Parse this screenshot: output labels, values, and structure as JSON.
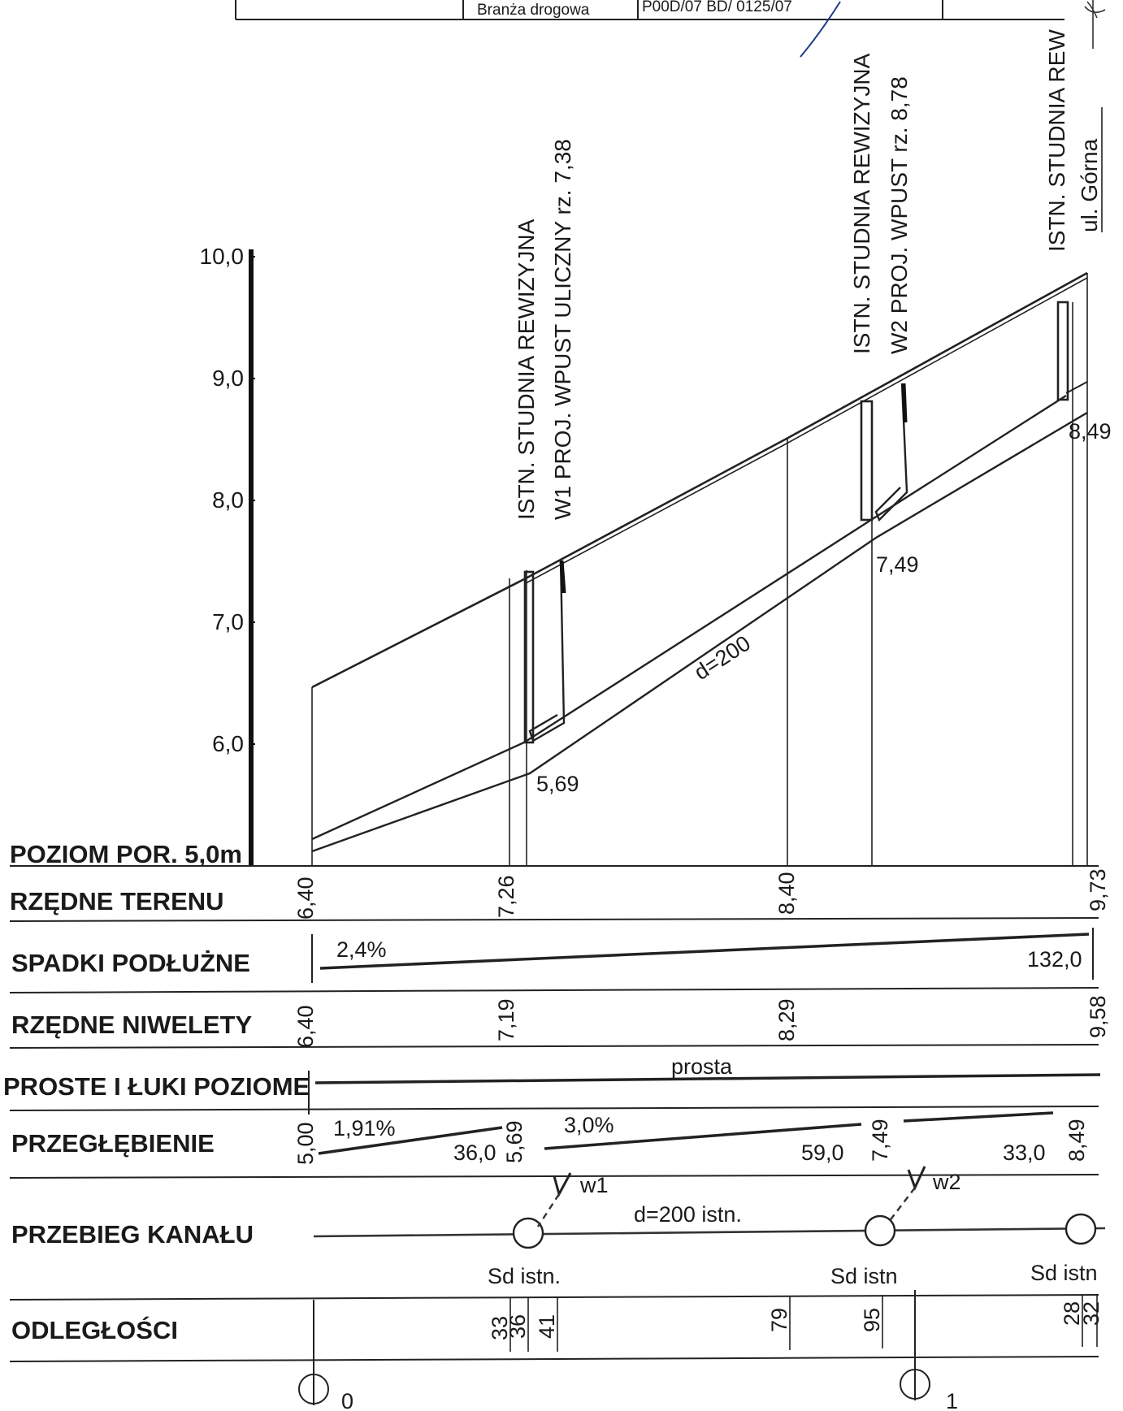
{
  "title_block": {
    "cell_left": "Branża drogowa",
    "cell_right": "P00D/07 BD/ 0125/07"
  },
  "vertical_annotations": {
    "w1_line1": "ISTN. STUDNIA REWIZYJNA",
    "w1_line2": "W1 PROJ. WPUST ULICZNY rz. 7,38",
    "w2_line1": "ISTN. STUDNIA REWIZYJNA",
    "w2_line2": "W2 PROJ. WPUST rz. 8,78",
    "end_line1": "ISTN. STUDNIA REW",
    "end_line2": "ul. Górna"
  },
  "scale": {
    "ticks": [
      "10,0",
      "9,0",
      "8,0",
      "7,0",
      "6,0"
    ],
    "datum_label": "POZIOM POR. 5,0m"
  },
  "profile": {
    "pipe_label": "d=200",
    "invert_labels": [
      "5,69",
      "7,49",
      "8,49"
    ]
  },
  "rows": {
    "terrain": {
      "label": "RZĘDNE TERENU",
      "values": [
        "6,40",
        "7,26",
        "8,40",
        "9,73"
      ]
    },
    "slopes": {
      "label": "SPADKI PODŁUŻNE",
      "slope": "2,4%",
      "length": "132,0"
    },
    "grade": {
      "label": "RZĘDNE NIWELETY",
      "values": [
        "6,40",
        "7,19",
        "8,29",
        "9,58"
      ]
    },
    "alignment": {
      "label": "PROSTE I ŁUKI POZIOME",
      "value": "prosta"
    },
    "depth": {
      "label": "PRZEGŁĘBIENIE",
      "elevations": [
        "5,00",
        "5,69",
        "7,49",
        "8,49"
      ],
      "slopes": [
        "1,91%",
        "3,0%"
      ],
      "lengths": [
        "36,0",
        "59,0",
        "33,0"
      ]
    },
    "sewer": {
      "label": "PRZEBIEG KANAŁU",
      "pipe": "d=200 istn.",
      "inlets": [
        "w1",
        "w2"
      ],
      "manholes": [
        "Sd istn.",
        "Sd istn",
        "Sd istn"
      ]
    },
    "distances": {
      "label": "ODLEGŁOŚCI",
      "values": [
        "33",
        "36",
        "41",
        "79",
        "95",
        "28",
        "32"
      ],
      "stations": [
        "0",
        "1"
      ]
    }
  }
}
